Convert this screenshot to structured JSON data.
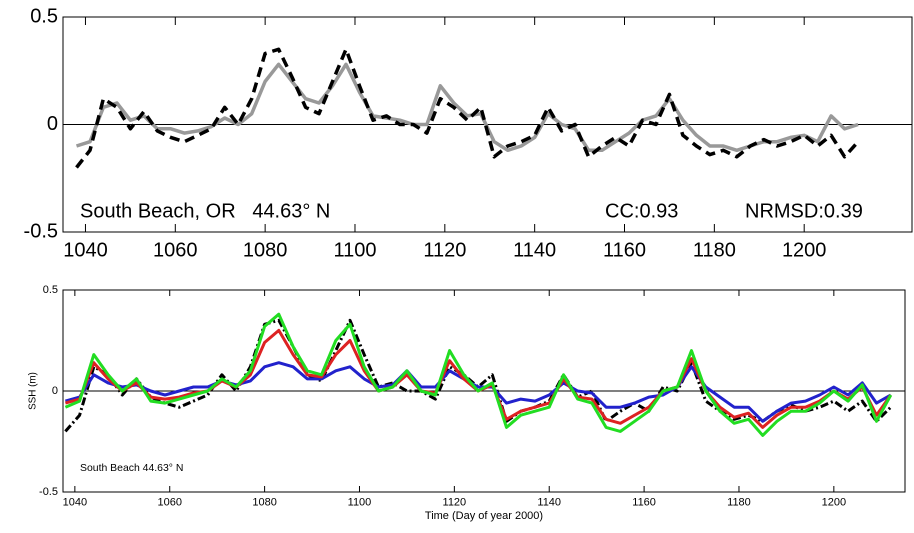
{
  "chart_data": [
    {
      "type": "line",
      "xlim": [
        1035,
        1224
      ],
      "ylim": [
        -0.5,
        0.5
      ],
      "xticks": [
        1040,
        1060,
        1080,
        1100,
        1120,
        1140,
        1160,
        1180,
        1200
      ],
      "yticks": [
        -0.5,
        0,
        0.5
      ],
      "zero_line": true,
      "annotations": [
        "South Beach, OR   44.63° N",
        "CC:0.93",
        "NRMSD:0.39"
      ],
      "x": [
        1038,
        1041,
        1044,
        1047,
        1050,
        1053,
        1056,
        1059,
        1062,
        1065,
        1068,
        1071,
        1074,
        1077,
        1080,
        1083,
        1086,
        1089,
        1092,
        1095,
        1098,
        1101,
        1104,
        1107,
        1110,
        1113,
        1116,
        1119,
        1122,
        1125,
        1128,
        1131,
        1134,
        1137,
        1140,
        1143,
        1146,
        1149,
        1152,
        1155,
        1158,
        1161,
        1164,
        1167,
        1170,
        1173,
        1176,
        1179,
        1182,
        1185,
        1188,
        1191,
        1194,
        1197,
        1200,
        1203,
        1206,
        1209,
        1212
      ],
      "series": [
        {
          "color": "#999999",
          "dash": "solid",
          "values": [
            -0.1,
            -0.08,
            0.08,
            0.1,
            0.02,
            0.04,
            -0.02,
            -0.02,
            -0.04,
            -0.03,
            -0.01,
            0.03,
            0.0,
            0.05,
            0.2,
            0.28,
            0.2,
            0.12,
            0.1,
            0.18,
            0.28,
            0.15,
            0.04,
            0.03,
            0.02,
            0.0,
            0.0,
            0.18,
            0.1,
            0.04,
            0.05,
            -0.08,
            -0.12,
            -0.1,
            -0.06,
            0.05,
            0.0,
            -0.02,
            -0.12,
            -0.12,
            -0.08,
            -0.04,
            0.02,
            0.04,
            0.12,
            0.02,
            -0.05,
            -0.1,
            -0.1,
            -0.12,
            -0.1,
            -0.08,
            -0.08,
            -0.06,
            -0.05,
            -0.08,
            0.04,
            -0.02,
            0.0
          ]
        },
        {
          "color": "#000000",
          "dash": "dashed",
          "values": [
            -0.2,
            -0.12,
            0.12,
            0.08,
            -0.02,
            0.06,
            -0.03,
            -0.06,
            -0.08,
            -0.05,
            -0.02,
            0.08,
            0.0,
            0.12,
            0.33,
            0.35,
            0.22,
            0.08,
            0.05,
            0.2,
            0.35,
            0.18,
            0.02,
            0.04,
            0.0,
            0.0,
            -0.04,
            0.12,
            0.08,
            0.02,
            0.08,
            -0.15,
            -0.1,
            -0.08,
            -0.05,
            0.08,
            -0.03,
            0.0,
            -0.15,
            -0.1,
            -0.06,
            -0.1,
            0.02,
            0.0,
            0.14,
            -0.05,
            -0.1,
            -0.14,
            -0.12,
            -0.15,
            -0.1,
            -0.07,
            -0.1,
            -0.08,
            -0.05,
            -0.1,
            -0.05,
            -0.15,
            -0.08
          ]
        }
      ]
    },
    {
      "type": "line",
      "ylabel": "SSH (m)",
      "xlabel": "Time (Day of year 2000)",
      "xlim": [
        1037.5,
        1215
      ],
      "ylim": [
        -0.5,
        0.5
      ],
      "xticks": [
        1040,
        1060,
        1080,
        1100,
        1120,
        1140,
        1160,
        1180,
        1200
      ],
      "yticks": [
        -0.5,
        0,
        0.5
      ],
      "zero_line": true,
      "annotations": [
        "South Beach 44.63° N"
      ],
      "x": [
        1038,
        1041,
        1044,
        1047,
        1050,
        1053,
        1056,
        1059,
        1062,
        1065,
        1068,
        1071,
        1074,
        1077,
        1080,
        1083,
        1086,
        1089,
        1092,
        1095,
        1098,
        1101,
        1104,
        1107,
        1110,
        1113,
        1116,
        1119,
        1122,
        1125,
        1128,
        1131,
        1134,
        1137,
        1140,
        1143,
        1146,
        1149,
        1152,
        1155,
        1158,
        1161,
        1164,
        1167,
        1170,
        1173,
        1176,
        1179,
        1182,
        1185,
        1188,
        1191,
        1194,
        1197,
        1200,
        1203,
        1206,
        1209,
        1212
      ],
      "series": [
        {
          "color": "#000000",
          "dash": "dashdot",
          "values": [
            -0.2,
            -0.12,
            0.12,
            0.08,
            -0.02,
            0.06,
            -0.03,
            -0.06,
            -0.08,
            -0.05,
            -0.02,
            0.08,
            0.0,
            0.12,
            0.33,
            0.35,
            0.22,
            0.08,
            0.05,
            0.2,
            0.35,
            0.18,
            0.02,
            0.04,
            0.0,
            0.0,
            -0.04,
            0.12,
            0.08,
            0.02,
            0.08,
            -0.15,
            -0.1,
            -0.08,
            -0.05,
            0.08,
            -0.03,
            0.0,
            -0.15,
            -0.1,
            -0.06,
            -0.1,
            0.02,
            0.0,
            0.14,
            -0.05,
            -0.1,
            -0.14,
            -0.12,
            -0.15,
            -0.1,
            -0.07,
            -0.1,
            -0.08,
            -0.05,
            -0.1,
            -0.05,
            -0.15,
            -0.08
          ]
        },
        {
          "color": "#2222cc",
          "dash": "solid",
          "values": [
            -0.05,
            -0.03,
            0.08,
            0.04,
            0.02,
            0.03,
            0.0,
            -0.02,
            0.0,
            0.02,
            0.02,
            0.05,
            0.03,
            0.05,
            0.12,
            0.14,
            0.12,
            0.06,
            0.06,
            0.1,
            0.12,
            0.06,
            0.02,
            0.03,
            0.1,
            0.02,
            0.02,
            0.1,
            0.06,
            0.02,
            0.02,
            -0.06,
            -0.04,
            -0.05,
            -0.02,
            0.04,
            0.0,
            -0.01,
            -0.08,
            -0.08,
            -0.06,
            -0.03,
            -0.02,
            0.02,
            0.12,
            0.02,
            -0.03,
            -0.08,
            -0.08,
            -0.15,
            -0.1,
            -0.06,
            -0.05,
            -0.02,
            0.02,
            -0.02,
            0.04,
            -0.06,
            -0.02
          ]
        },
        {
          "color": "#dd2222",
          "dash": "solid",
          "values": [
            -0.06,
            -0.04,
            0.14,
            0.06,
            0.0,
            0.04,
            -0.03,
            -0.04,
            -0.03,
            -0.01,
            0.0,
            0.05,
            0.02,
            0.08,
            0.24,
            0.3,
            0.18,
            0.08,
            0.07,
            0.18,
            0.25,
            0.1,
            0.0,
            0.02,
            0.08,
            0.0,
            -0.01,
            0.15,
            0.06,
            0.0,
            0.03,
            -0.14,
            -0.1,
            -0.08,
            -0.06,
            0.06,
            -0.03,
            -0.04,
            -0.14,
            -0.16,
            -0.12,
            -0.08,
            0.0,
            0.02,
            0.16,
            0.0,
            -0.08,
            -0.13,
            -0.11,
            -0.18,
            -0.12,
            -0.08,
            -0.08,
            -0.05,
            0.0,
            -0.04,
            0.02,
            -0.12,
            -0.02
          ]
        },
        {
          "color": "#22dd22",
          "dash": "solid",
          "values": [
            -0.08,
            -0.05,
            0.18,
            0.08,
            0.0,
            0.06,
            -0.05,
            -0.06,
            -0.04,
            -0.02,
            0.0,
            0.06,
            0.02,
            0.1,
            0.32,
            0.38,
            0.22,
            0.1,
            0.08,
            0.25,
            0.33,
            0.12,
            0.0,
            0.02,
            0.1,
            0.0,
            -0.02,
            0.2,
            0.08,
            0.0,
            0.04,
            -0.18,
            -0.12,
            -0.1,
            -0.08,
            0.08,
            -0.04,
            -0.06,
            -0.18,
            -0.2,
            -0.15,
            -0.1,
            0.0,
            0.02,
            0.2,
            0.0,
            -0.1,
            -0.16,
            -0.14,
            -0.22,
            -0.15,
            -0.1,
            -0.1,
            -0.06,
            0.0,
            -0.05,
            0.03,
            -0.15,
            -0.02
          ]
        }
      ]
    }
  ]
}
